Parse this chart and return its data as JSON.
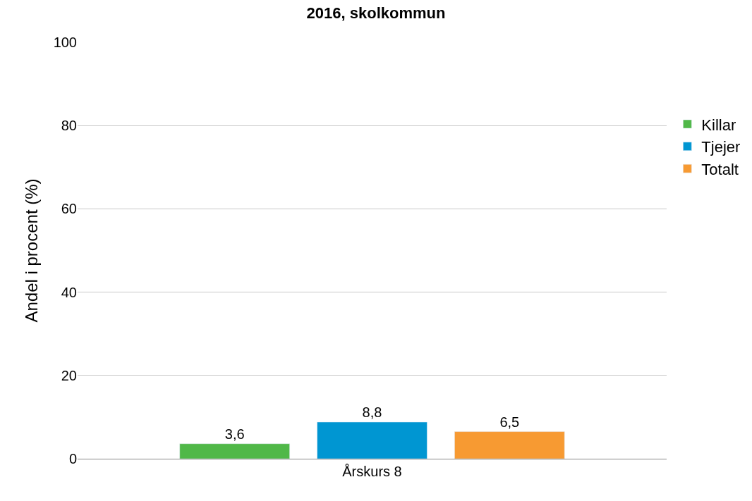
{
  "chart_data": {
    "type": "bar",
    "title": "2016, skolkommun",
    "ylabel": "Andel i procent (%)",
    "categories": [
      "Årskurs 8"
    ],
    "series": [
      {
        "name": "Killar",
        "color": "#50b848",
        "values": [
          3.6
        ],
        "value_labels": [
          "3,6"
        ]
      },
      {
        "name": "Tjejer",
        "color": "#0096d2",
        "values": [
          8.8
        ],
        "value_labels": [
          "8,8"
        ]
      },
      {
        "name": "Totalt",
        "color": "#f79a32",
        "values": [
          6.5
        ],
        "value_labels": [
          "6,5"
        ]
      }
    ],
    "ylim": [
      0,
      100
    ],
    "yticks": [
      0,
      20,
      40,
      60,
      80,
      100
    ],
    "grid": "y",
    "legend": "right"
  }
}
